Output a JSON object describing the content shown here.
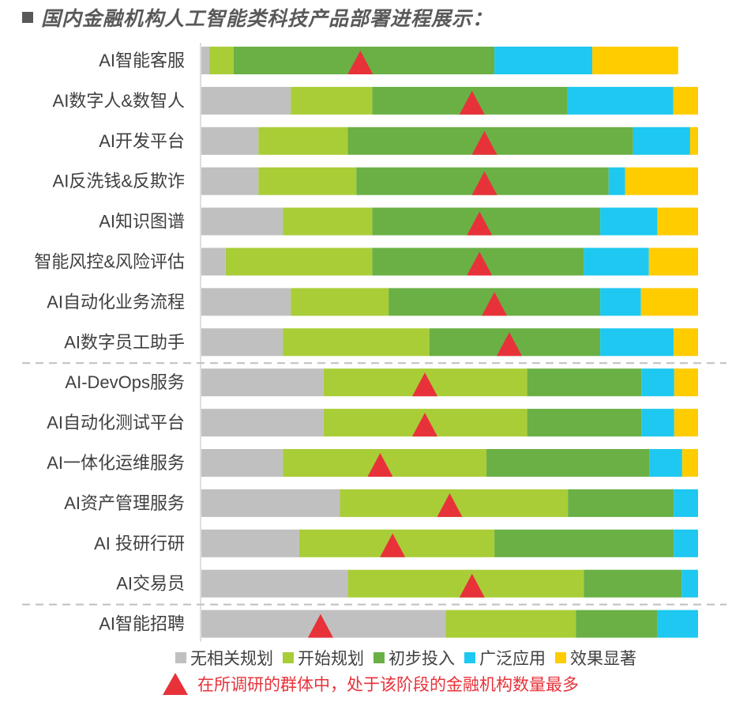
{
  "title": "国内金融机构人工智能类科技产品部署进程展示：",
  "legend": {
    "items": [
      {
        "label": "无相关规划",
        "color": "#c0c0c0"
      },
      {
        "label": "开始规划",
        "color": "#a9cd37"
      },
      {
        "label": "初步投入",
        "color": "#6ab045"
      },
      {
        "label": "广泛应用",
        "color": "#1ec8f0"
      },
      {
        "label": "效果显著",
        "color": "#ffcc00"
      }
    ],
    "note": "在所调研的群体中，处于该阶段的金融机构数量最多",
    "note_color": "#e8323a"
  },
  "chart_data": {
    "type": "bar",
    "orientation": "horizontal",
    "stacked": true,
    "xlim": [
      0,
      100
    ],
    "title": "国内金融机构人工智能类科技产品部署进程展示：",
    "categories": [
      "AI智能客服",
      "AI数字人&数智人",
      "AI开发平台",
      "AI反洗钱&反欺诈",
      "AI知识图谱",
      "智能风控&风险评估",
      "AI自动化业务流程",
      "AI数字员工助手",
      "AI-DevOps服务",
      "AI自动化测试平台",
      "AI一体化运维服务",
      "AI资产管理服务",
      "AI 投研行研",
      "AI交易员",
      "AI智能招聘"
    ],
    "series": [
      {
        "name": "无相关规划",
        "color": "#c0c0c0",
        "values": [
          1.6,
          18.0,
          11.5,
          11.5,
          16.4,
          4.9,
          18.0,
          16.4,
          24.6,
          24.6,
          16.4,
          27.9,
          19.7,
          29.5,
          49.2
        ]
      },
      {
        "name": "开始规划",
        "color": "#a9cd37",
        "values": [
          4.9,
          16.4,
          18.0,
          19.7,
          18.0,
          29.5,
          19.7,
          29.5,
          41.0,
          41.0,
          41.0,
          45.9,
          39.3,
          47.5,
          26.2
        ]
      },
      {
        "name": "初步投入",
        "color": "#6ab045",
        "values": [
          52.5,
          39.3,
          57.4,
          50.8,
          45.9,
          42.6,
          42.6,
          34.4,
          23.0,
          23.0,
          32.8,
          21.3,
          36.1,
          19.7,
          16.4
        ]
      },
      {
        "name": "广泛应用",
        "color": "#1ec8f0",
        "values": [
          19.7,
          21.3,
          11.5,
          3.3,
          11.5,
          13.1,
          8.2,
          14.8,
          6.6,
          6.6,
          6.6,
          4.9,
          4.9,
          3.3,
          8.2
        ]
      },
      {
        "name": "效果显著",
        "color": "#ffcc00",
        "values": [
          17.3,
          5.0,
          1.6,
          14.7,
          8.2,
          9.9,
          11.5,
          4.9,
          4.8,
          4.8,
          3.2,
          0,
          0,
          0,
          0
        ]
      }
    ],
    "markers": [
      32,
      54.5,
      57,
      57,
      56,
      56,
      59,
      62,
      45,
      45,
      36,
      50,
      38.5,
      54.5,
      24
    ],
    "group_separators_after": [
      7,
      13
    ],
    "marker_color": "#e8323a",
    "separator_color": "#bfbfbf",
    "grid": false,
    "legend_position": "bottom"
  }
}
